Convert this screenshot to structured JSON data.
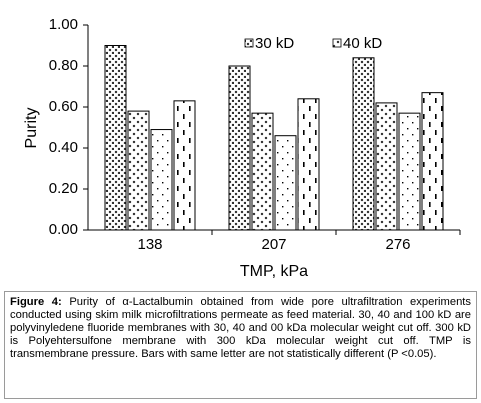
{
  "chart_data": {
    "type": "bar",
    "categories": [
      "138",
      "207",
      "276"
    ],
    "series": [
      {
        "name": "30 kD",
        "pattern": "dense-x",
        "color": "#000000",
        "values": [
          0.9,
          0.8,
          0.84
        ]
      },
      {
        "name": "40 kD",
        "pattern": "sparse-x",
        "color": "#000000",
        "values": [
          0.58,
          0.57,
          0.62
        ]
      },
      {
        "pattern": "dots",
        "color": "#000000",
        "values": [
          0.49,
          0.46,
          0.57
        ]
      },
      {
        "pattern": "dashes",
        "color": "#000000",
        "values": [
          0.63,
          0.64,
          0.67
        ]
      }
    ],
    "ylim": [
      0,
      1
    ],
    "yticks": [
      {
        "value": 0,
        "label": "0.00"
      },
      {
        "value": 0.2,
        "label": "0.20"
      },
      {
        "value": 0.4,
        "label": "0.40"
      },
      {
        "value": 0.6,
        "label": "0.60"
      },
      {
        "value": 0.8,
        "label": "0.80"
      },
      {
        "value": 1,
        "label": "1.00"
      }
    ],
    "ylabel": "Purity",
    "xlabel": "TMP, kPa",
    "legend": "top-right",
    "caption_label": "Figure 4:",
    "caption": "Purity of α-Lactalbumin obtained from wide pore ultrafiltration experiments conducted using skim milk microfiltrations permeate as feed material. 30, 40 and 100 kD are polyvinyledene fluoride membranes with 30, 40 and 00 kDa molecular weight cut off. 300 kD is Polyehtersulfone membrane with 300 kDa molecular weight cut off. TMP is transmembrane pressure. Bars with same letter are not statistically different (P <0.05)."
  }
}
